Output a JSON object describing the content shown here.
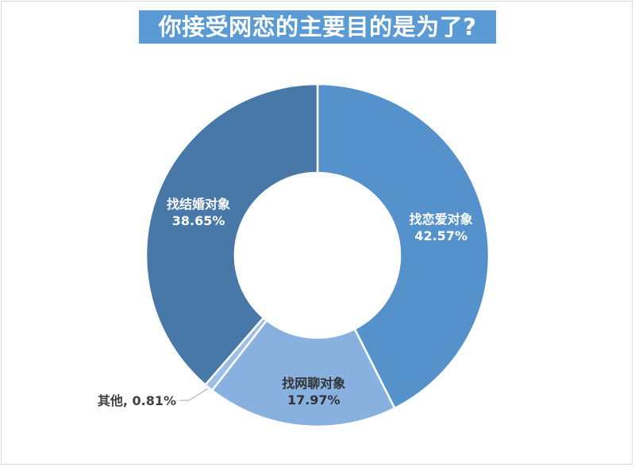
{
  "chart_data": {
    "type": "pie",
    "variant": "donut",
    "title": "你接受网恋的主要目的是为了?",
    "slices": [
      {
        "label": "找恋爱对象",
        "value": 42.57,
        "display": "42.57%",
        "color": "#5592cc",
        "text_color": "#ffffff"
      },
      {
        "label": "找网聊对象",
        "value": 17.97,
        "display": "17.97%",
        "color": "#88b1e0",
        "text_color": "#333333"
      },
      {
        "label": "其他",
        "value": 0.81,
        "display": "0.81%",
        "color": "#9dbfe6",
        "text_color": "#404040"
      },
      {
        "label": "找结婚对象",
        "value": 38.65,
        "display": "38.65%",
        "color": "#4878a8",
        "text_color": "#ffffff"
      }
    ],
    "legend": "none",
    "start_angle": "12 o'clock, clockwise"
  }
}
